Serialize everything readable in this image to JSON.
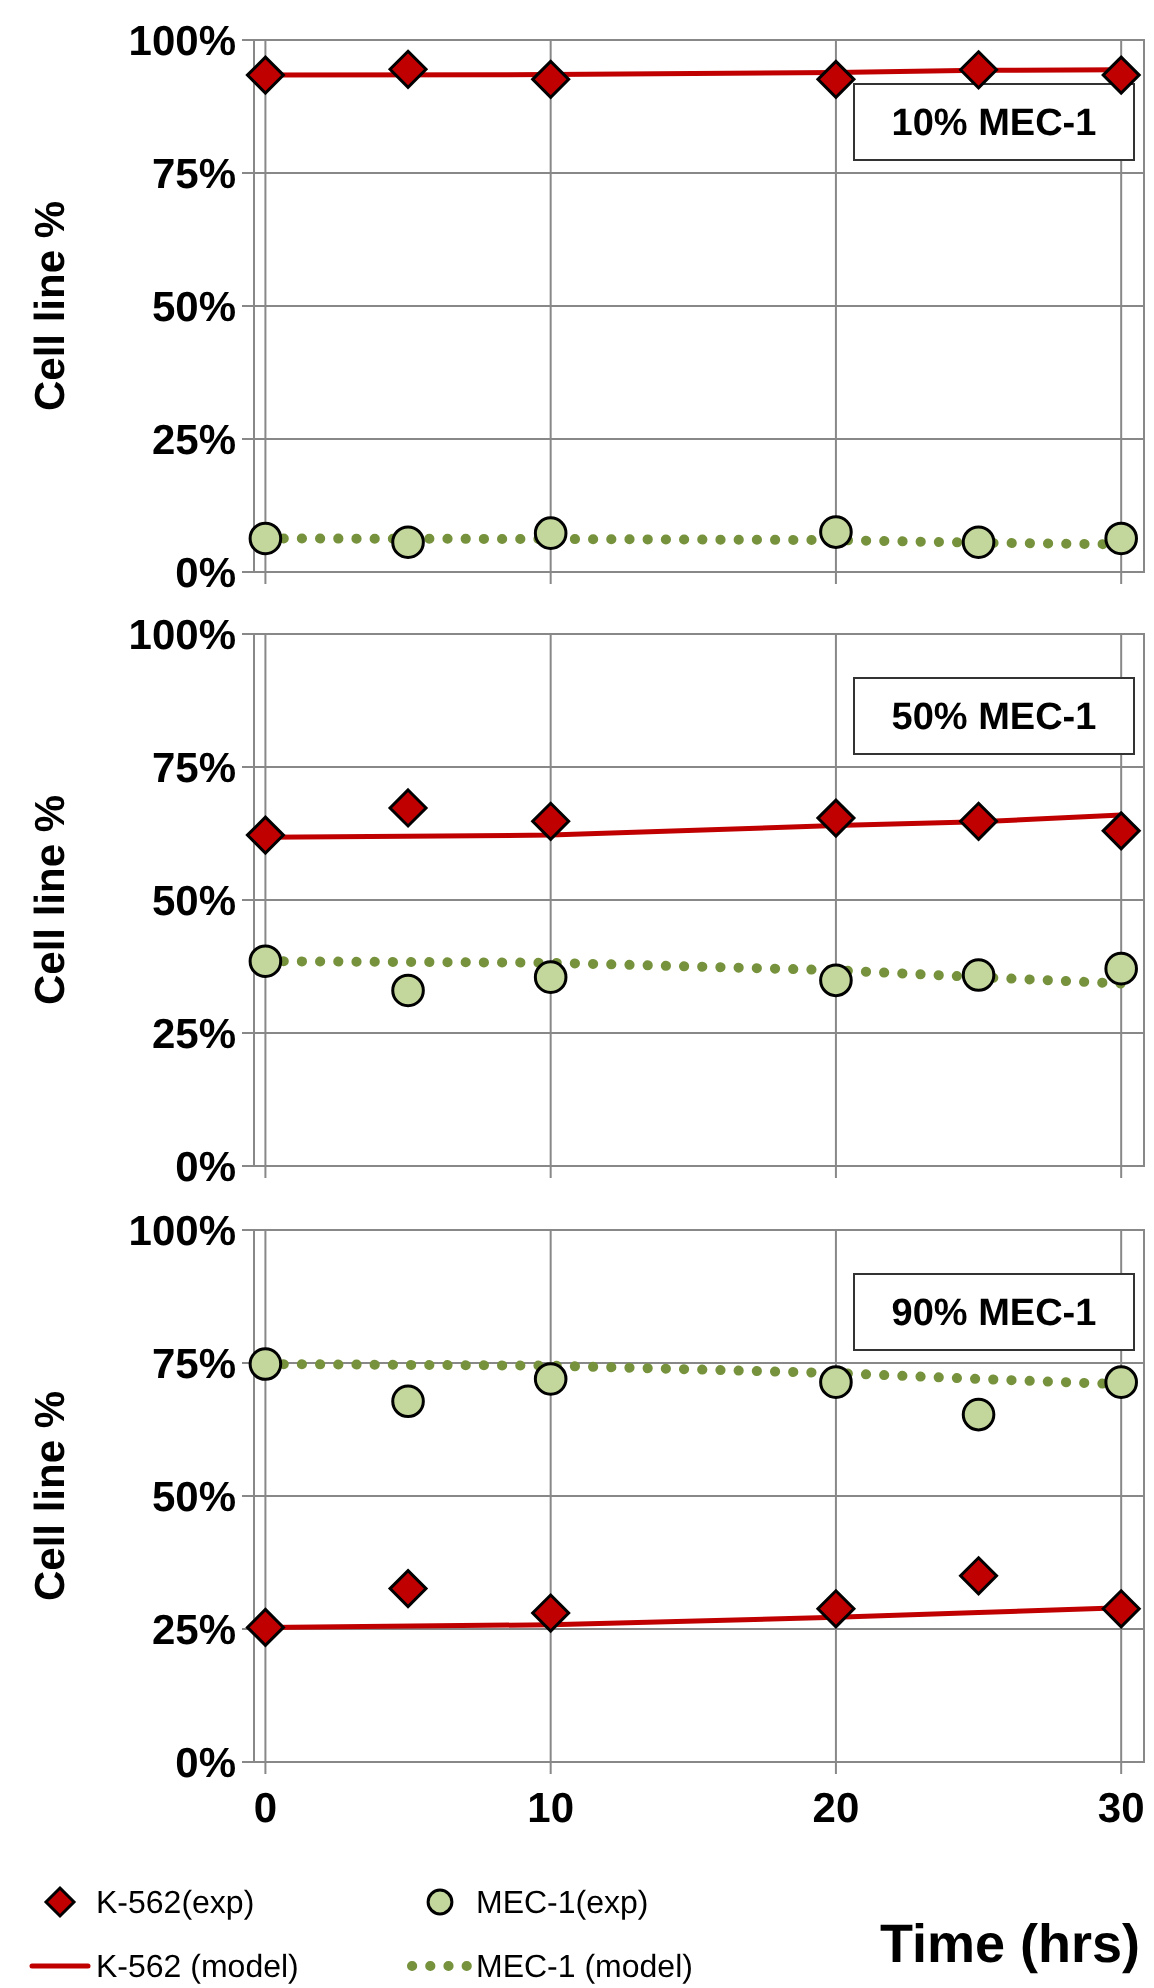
{
  "chart_data": [
    {
      "type": "scatter",
      "ylabel": "Cell line %",
      "annotations": [
        "10% MEC-1"
      ],
      "xlim": [
        -0.4,
        30.8
      ],
      "xticks": [
        0,
        10,
        20,
        30
      ],
      "ylim": [
        0,
        100
      ],
      "yticks": [
        {
          "value": 0,
          "label": "0%"
        },
        {
          "value": 25,
          "label": "25%"
        },
        {
          "value": 50,
          "label": "50%"
        },
        {
          "value": 75,
          "label": "75%"
        },
        {
          "value": 100,
          "label": "100%"
        }
      ],
      "grid": true,
      "tick_labels": "y",
      "x": [
        0,
        5,
        10,
        20,
        25,
        30
      ],
      "series": [
        {
          "type": "line",
          "color": "#c00000",
          "line_style": "solid",
          "marker": "none",
          "x": [
            0,
            10,
            20,
            25,
            30
          ],
          "values": [
            93.4,
            93.5,
            93.9,
            94.3,
            94.4
          ]
        },
        {
          "type": "line",
          "color": "#76923c",
          "line_style": "dotted",
          "marker": "none",
          "x": [
            0,
            10,
            20,
            25,
            30
          ],
          "values": [
            6.3,
            6.2,
            6.0,
            5.5,
            5.2
          ]
        },
        {
          "type": "scatter",
          "color": "#c00000",
          "marker": "diamond",
          "values": [
            93.4,
            94.5,
            92.6,
            92.6,
            94.4,
            93.4
          ]
        },
        {
          "type": "scatter",
          "color": "#c3d69b",
          "marker": "circle",
          "values": [
            6.3,
            5.6,
            7.3,
            7.5,
            5.6,
            6.3
          ]
        }
      ]
    },
    {
      "type": "scatter",
      "ylabel": "Cell line %",
      "annotations": [
        "50% MEC-1"
      ],
      "xlim": [
        -0.4,
        30.8
      ],
      "xticks": [
        0,
        10,
        20,
        30
      ],
      "ylim": [
        0,
        100
      ],
      "yticks": [
        {
          "value": 0,
          "label": "0%"
        },
        {
          "value": 25,
          "label": "25%"
        },
        {
          "value": 50,
          "label": "50%"
        },
        {
          "value": 75,
          "label": "75%"
        },
        {
          "value": 100,
          "label": "100%"
        }
      ],
      "grid": true,
      "tick_labels": "y",
      "x": [
        0,
        5,
        10,
        20,
        25,
        30
      ],
      "series": [
        {
          "type": "line",
          "color": "#c00000",
          "line_style": "solid",
          "marker": "none",
          "x": [
            0,
            10,
            20,
            25,
            30
          ],
          "values": [
            61.8,
            62.2,
            64.0,
            64.7,
            66.0
          ]
        },
        {
          "type": "line",
          "color": "#76923c",
          "line_style": "dotted",
          "marker": "none",
          "x": [
            0,
            10,
            20,
            25,
            30
          ],
          "values": [
            38.5,
            38.2,
            36.8,
            35.5,
            34.3
          ]
        },
        {
          "type": "scatter",
          "color": "#c00000",
          "marker": "diamond",
          "values": [
            62.2,
            67.3,
            64.8,
            65.4,
            64.8,
            63.0
          ]
        },
        {
          "type": "scatter",
          "color": "#c3d69b",
          "marker": "circle",
          "values": [
            38.5,
            33.0,
            35.5,
            34.9,
            35.9,
            37.1
          ]
        }
      ]
    },
    {
      "type": "scatter",
      "ylabel": "Cell line %",
      "xlabel": "Time (hrs)",
      "annotations": [
        "90% MEC-1"
      ],
      "xlim": [
        -0.4,
        30.8
      ],
      "xticks": [
        0,
        10,
        20,
        30
      ],
      "ylim": [
        0,
        100
      ],
      "yticks": [
        {
          "value": 0,
          "label": "0%"
        },
        {
          "value": 25,
          "label": "25%"
        },
        {
          "value": 50,
          "label": "50%"
        },
        {
          "value": 75,
          "label": "75%"
        },
        {
          "value": 100,
          "label": "100%"
        }
      ],
      "grid": true,
      "legend": "bottom",
      "x": [
        0,
        5,
        10,
        20,
        25,
        30
      ],
      "series": [
        {
          "name": "K-562 (model)",
          "type": "line",
          "color": "#c00000",
          "line_style": "solid",
          "marker": "none",
          "x": [
            0,
            10,
            20,
            25,
            30
          ],
          "values": [
            25.3,
            25.8,
            27.2,
            28.1,
            29.0
          ]
        },
        {
          "name": "MEC-1 (model)",
          "type": "line",
          "color": "#76923c",
          "line_style": "dotted",
          "marker": "none",
          "x": [
            0,
            10,
            20,
            25,
            30
          ],
          "values": [
            74.8,
            74.5,
            73.1,
            72.0,
            71.0
          ]
        },
        {
          "name": "K-562(exp)",
          "type": "scatter",
          "color": "#c00000",
          "marker": "diamond",
          "values": [
            25.3,
            32.6,
            28.0,
            28.8,
            35.0,
            28.8
          ]
        },
        {
          "name": "MEC-1(exp)",
          "type": "scatter",
          "color": "#c3d69b",
          "marker": "circle",
          "values": [
            74.8,
            67.8,
            72.0,
            71.4,
            65.3,
            71.4
          ]
        }
      ]
    }
  ]
}
